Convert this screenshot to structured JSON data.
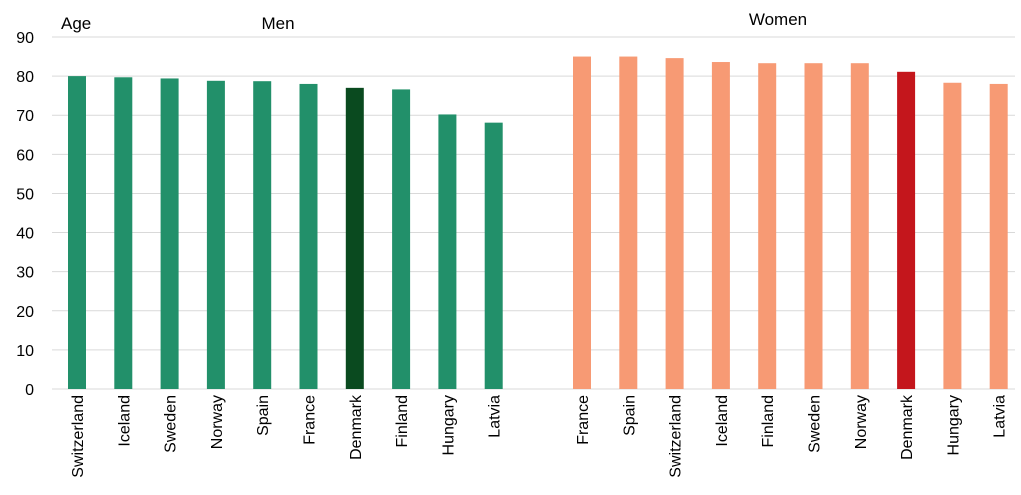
{
  "chart_data": {
    "type": "bar",
    "ylabel": "Age",
    "ylim": [
      0,
      90
    ],
    "yticks": [
      0,
      10,
      20,
      30,
      40,
      50,
      60,
      70,
      80,
      90
    ],
    "grid": true,
    "legend": "none",
    "groups": [
      {
        "name": "Men",
        "color": "#22906a",
        "highlight_color": "#0a4a1f",
        "highlight_category": "Denmark",
        "categories": [
          "Switzerland",
          "Iceland",
          "Sweden",
          "Norway",
          "Spain",
          "France",
          "Denmark",
          "Finland",
          "Hungary",
          "Latvia"
        ],
        "values": [
          80.0,
          79.7,
          79.4,
          78.8,
          78.7,
          78.0,
          77.0,
          76.6,
          70.2,
          68.1
        ]
      },
      {
        "name": "Women",
        "color": "#f79a74",
        "highlight_color": "#c4161c",
        "highlight_category": "Denmark",
        "categories": [
          "France",
          "Spain",
          "Switzerland",
          "Iceland",
          "Finland",
          "Sweden",
          "Norway",
          "Denmark",
          "Hungary",
          "Latvia"
        ],
        "values": [
          85.0,
          85.0,
          84.6,
          83.6,
          83.3,
          83.3,
          83.3,
          81.1,
          78.3,
          78.0
        ]
      }
    ]
  }
}
